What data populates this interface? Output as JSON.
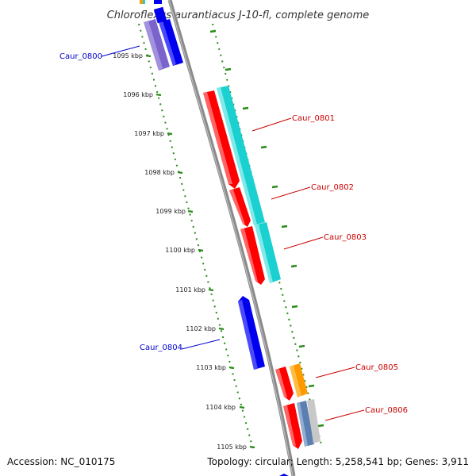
{
  "title": "Chloroflexus aurantiacus J-10-fl, complete genome",
  "footer": {
    "accession": "Accession: NC_010175",
    "topology": "Topology: circular; Length: 5,258,541 bp; Genes: 3,911"
  },
  "kbp_labels": [
    "1095 kbp",
    "1096 kbp",
    "1097 kbp",
    "1098 kbp",
    "1099 kbp",
    "1100 kbp",
    "1101 kbp",
    "1102 kbp",
    "1103 kbp",
    "1104 kbp",
    "1105 kbp"
  ],
  "gene_labels": [
    {
      "text": "Caur_0800",
      "color": "#0000cc"
    },
    {
      "text": "Caur_0801",
      "color": "#cc0000"
    },
    {
      "text": "Caur_0802",
      "color": "#cc0000"
    },
    {
      "text": "Caur_0803",
      "color": "#cc0000"
    },
    {
      "text": "Caur_0804",
      "color": "#0000cc"
    },
    {
      "text": "Caur_0805",
      "color": "#cc0000"
    },
    {
      "text": "Caur_0806",
      "color": "#cc0000"
    }
  ],
  "colors": {
    "backbone": "#8a8a8a",
    "ruler": "#2a8a1a",
    "red_gene": "#ff0000",
    "cyan_gene": "#1ad0d0",
    "blue_gene": "#0000ee",
    "purple_gene": "#7a64cc",
    "orange_gene": "#ff9900",
    "steel_gene": "#5a7fb0",
    "gray_gene": "#c8c8c8"
  }
}
